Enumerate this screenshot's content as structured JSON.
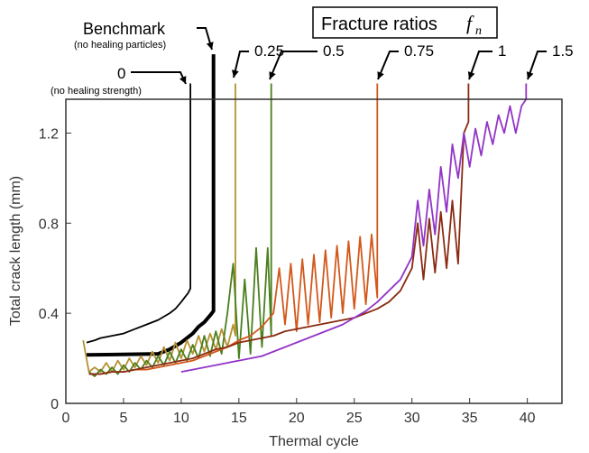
{
  "chart_data": {
    "type": "line",
    "title": "Fracture ratios",
    "title_symbol": "f",
    "title_subscript": "n",
    "xlabel": "Thermal cycle",
    "ylabel": "Total crack length (mm)",
    "xlim": [
      0,
      43
    ],
    "ylim": [
      0,
      1.35
    ],
    "xticks": [
      0,
      5,
      10,
      15,
      20,
      25,
      30,
      35,
      40
    ],
    "yticks": [
      0,
      0.4,
      0.8,
      1.2
    ],
    "grid": false,
    "series": [
      {
        "name": "0",
        "sublabel": "(no healing strength)",
        "color": "#000000",
        "x": [
          1.8,
          2.5,
          3,
          4,
          5,
          6,
          7,
          8,
          9,
          9.5,
          10,
          10.3,
          10.6,
          10.8,
          10.8
        ],
        "y": [
          0.27,
          0.28,
          0.29,
          0.3,
          0.31,
          0.33,
          0.35,
          0.37,
          0.4,
          0.42,
          0.45,
          0.47,
          0.49,
          0.51,
          1.42
        ]
      },
      {
        "name": "Benchmark",
        "sublabel": "(no healing particles)",
        "color": "#000000",
        "x": [
          1.8,
          8,
          9,
          10,
          11,
          11.5,
          12,
          12.5,
          12.8,
          12.8
        ],
        "y": [
          0.215,
          0.22,
          0.24,
          0.27,
          0.31,
          0.34,
          0.36,
          0.39,
          0.41,
          1.55
        ]
      },
      {
        "name": "0.25",
        "color": "#b5912f",
        "x": [
          1.5,
          2,
          2.5,
          3,
          3.5,
          4,
          4.5,
          5,
          5.5,
          6,
          6.5,
          7,
          7.5,
          8,
          8.5,
          9,
          9.5,
          10,
          10.5,
          11,
          11.5,
          12,
          12.5,
          13,
          13.5,
          14,
          14.5,
          14.7,
          14.7
        ],
        "y": [
          0.28,
          0.14,
          0.16,
          0.14,
          0.18,
          0.14,
          0.19,
          0.15,
          0.2,
          0.16,
          0.21,
          0.17,
          0.23,
          0.18,
          0.25,
          0.19,
          0.27,
          0.2,
          0.28,
          0.22,
          0.3,
          0.23,
          0.31,
          0.24,
          0.33,
          0.25,
          0.35,
          0.3,
          1.42
        ]
      },
      {
        "name": "0.5",
        "color": "#4a7f1e",
        "x": [
          2,
          2.5,
          3,
          3.5,
          4,
          4.5,
          5,
          5.5,
          6,
          6.5,
          7,
          7.5,
          8,
          8.5,
          9,
          9.5,
          10,
          10.5,
          11,
          11.5,
          12,
          12.5,
          13,
          13.5,
          14,
          14.5,
          15,
          15.5,
          16,
          16.5,
          17,
          17.5,
          17.8,
          17.8
        ],
        "y": [
          0.14,
          0.12,
          0.15,
          0.13,
          0.16,
          0.13,
          0.17,
          0.14,
          0.18,
          0.15,
          0.19,
          0.16,
          0.21,
          0.17,
          0.23,
          0.18,
          0.24,
          0.19,
          0.26,
          0.2,
          0.3,
          0.21,
          0.32,
          0.22,
          0.4,
          0.62,
          0.2,
          0.55,
          0.22,
          0.69,
          0.25,
          0.69,
          0.3,
          1.42
        ]
      },
      {
        "name": "0.75",
        "color": "#d2581b",
        "x": [
          2,
          3,
          4,
          5,
          6,
          7,
          8,
          9,
          10,
          11,
          12,
          13,
          14,
          15,
          16,
          17,
          18,
          18.5,
          19,
          19.5,
          20,
          20.5,
          21,
          21.5,
          22,
          22.5,
          23,
          23.5,
          24,
          24.5,
          25,
          25.5,
          26,
          26.5,
          27,
          27,
          27
        ],
        "y": [
          0.13,
          0.13,
          0.14,
          0.14,
          0.15,
          0.15,
          0.16,
          0.17,
          0.18,
          0.19,
          0.21,
          0.23,
          0.25,
          0.28,
          0.3,
          0.34,
          0.4,
          0.6,
          0.35,
          0.62,
          0.32,
          0.64,
          0.35,
          0.66,
          0.36,
          0.68,
          0.38,
          0.7,
          0.4,
          0.72,
          0.42,
          0.74,
          0.44,
          0.75,
          0.47,
          0.75,
          1.42
        ]
      },
      {
        "name": "1",
        "color": "#8a2b12",
        "x": [
          2,
          3,
          4,
          5,
          6,
          7,
          8,
          9,
          10,
          11,
          12,
          13,
          14,
          15,
          16,
          17,
          18,
          19,
          20,
          21,
          22,
          23,
          24,
          25,
          26,
          27,
          28,
          29,
          30,
          30.5,
          31,
          31.5,
          32,
          32.5,
          33,
          33.5,
          34,
          34.5,
          34.9,
          34.9
        ],
        "y": [
          0.13,
          0.13,
          0.14,
          0.14,
          0.15,
          0.16,
          0.17,
          0.18,
          0.19,
          0.2,
          0.22,
          0.24,
          0.25,
          0.27,
          0.28,
          0.29,
          0.3,
          0.32,
          0.33,
          0.34,
          0.35,
          0.36,
          0.37,
          0.38,
          0.4,
          0.42,
          0.45,
          0.5,
          0.6,
          0.8,
          0.55,
          0.82,
          0.58,
          0.85,
          0.6,
          0.9,
          0.62,
          1.2,
          1.25,
          1.42
        ]
      },
      {
        "name": "1.5",
        "color": "#9234c7",
        "x": [
          10,
          11,
          12,
          13,
          14,
          15,
          16,
          17,
          18,
          19,
          20,
          21,
          22,
          23,
          24,
          25,
          26,
          27,
          28,
          29,
          30,
          30.5,
          31,
          31.5,
          32,
          32.5,
          33,
          33.5,
          34,
          34.5,
          35,
          35.5,
          36,
          36.5,
          37,
          37.5,
          38,
          38.5,
          39,
          39.5,
          39.9,
          39.9
        ],
        "y": [
          0.14,
          0.15,
          0.16,
          0.17,
          0.18,
          0.19,
          0.2,
          0.21,
          0.23,
          0.25,
          0.27,
          0.29,
          0.31,
          0.33,
          0.35,
          0.38,
          0.41,
          0.45,
          0.5,
          0.55,
          0.65,
          0.9,
          0.7,
          0.95,
          0.75,
          1.05,
          0.85,
          1.15,
          1.0,
          1.2,
          1.05,
          1.22,
          1.1,
          1.25,
          1.15,
          1.28,
          1.2,
          1.32,
          1.2,
          1.32,
          1.35,
          1.42
        ]
      }
    ]
  }
}
